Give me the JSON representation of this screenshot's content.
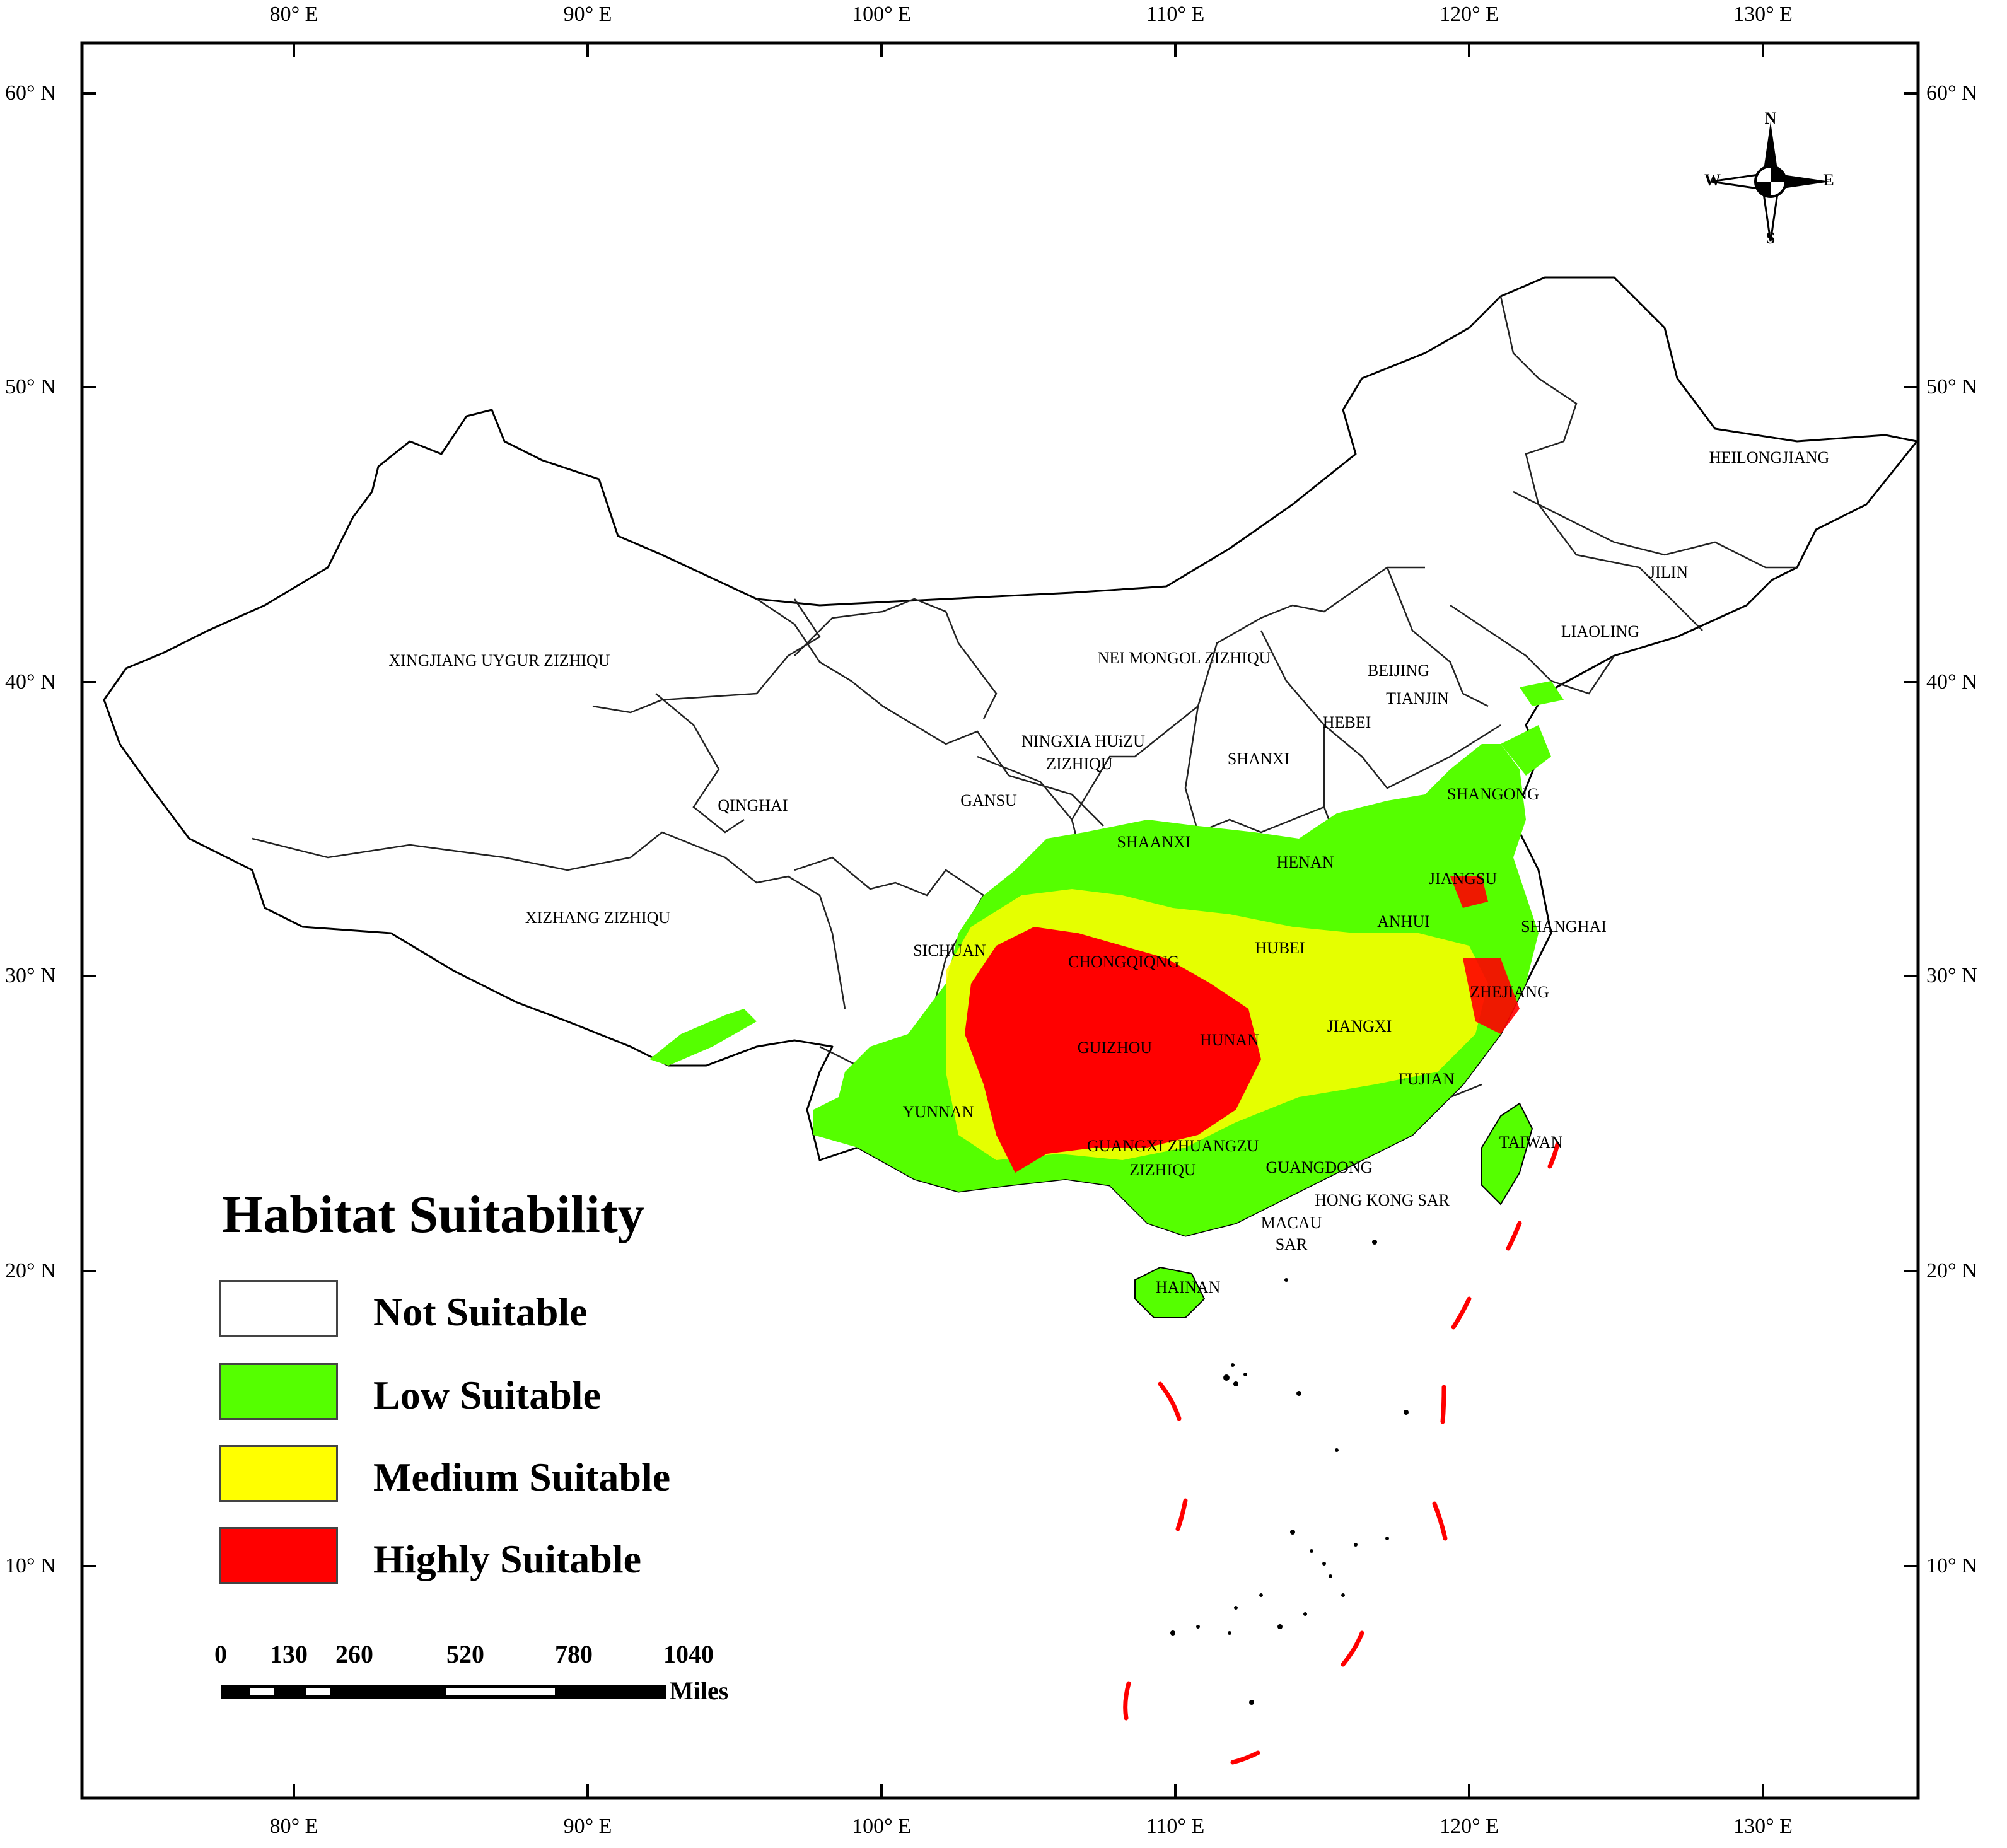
{
  "map": {
    "top_ticks": [
      "80° E",
      "90° E",
      "100° E",
      "110° E",
      "120° E",
      "130° E"
    ],
    "bottom_ticks": [
      "80° E",
      "90° E",
      "100° E",
      "110° E",
      "120° E",
      "130° E"
    ],
    "left_ticks": [
      "60° N",
      "50° N",
      "40° N",
      "30° N",
      "20° N",
      "10° N"
    ],
    "right_ticks": [
      "60° N",
      "50° N",
      "40° N",
      "30° N",
      "20° N",
      "10° N"
    ],
    "compass": {
      "n": "N",
      "s": "S",
      "e": "E",
      "w": "W"
    },
    "provinces": [
      "XINGJIANG UYGUR ZIZHIQU",
      "QINGHAI",
      "XIZHANG ZIZHIQU",
      "NEI MONGOL ZIZHIQU",
      "HEILONGJIANG",
      "JILIN",
      "LIAOLING",
      "BEIJING",
      "TIANJIN",
      "HEBEI",
      "NINGXIA HUiZU",
      "ZIZHIQU",
      "SHANXI",
      "GANSU",
      "SHANGONG",
      "SHAANXI",
      "HENAN",
      "JIANGSU",
      "ANHUI",
      "SHANGHAI",
      "SICHUAN",
      "CHONGQIQNG",
      "HUBEI",
      "ZHEJIANG",
      "JIANGXI",
      "HUNAN",
      "GUIZHOU",
      "FUJIAN",
      "YUNNAN",
      "TAIWAN",
      "GUANGXI ZHUANGZU",
      "ZIZHIQU",
      "GUANGDONG",
      "HONG KONG SAR",
      "MACAU",
      "SAR",
      "HAINAN"
    ]
  },
  "legend": {
    "title": "Habitat Suitability",
    "items": [
      {
        "label": "Not Suitable",
        "color": "#ffffff"
      },
      {
        "label": "Low Suitable",
        "color": "#55ff00"
      },
      {
        "label": "Medium Suitable",
        "color": "#ffff00"
      },
      {
        "label": "Highly Suitable",
        "color": "#ff0000"
      }
    ]
  },
  "scale_bar": {
    "labels": [
      "0",
      "130",
      "260",
      "520",
      "780",
      "1040"
    ],
    "unit": "Miles"
  }
}
